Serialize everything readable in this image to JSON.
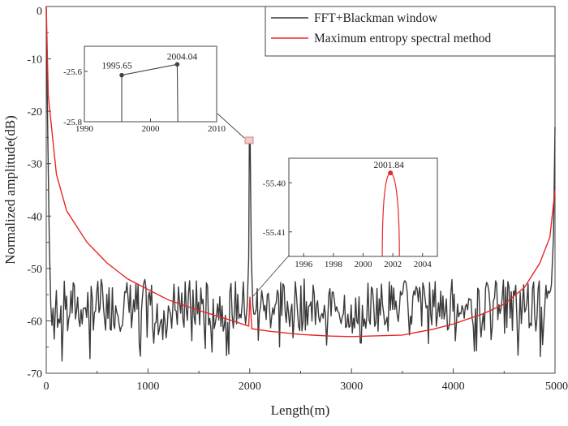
{
  "chart_data": {
    "type": "line",
    "xlabel": "Length(m)",
    "ylabel": "Normalized amplitude(dB)",
    "xlim": [
      0,
      5000
    ],
    "ylim": [
      -70,
      0
    ],
    "x_ticks": [
      "0",
      "1000",
      "2000",
      "3000",
      "4000",
      "5000"
    ],
    "y_ticks": [
      "0",
      "-10",
      "-20",
      "-30",
      "-40",
      "-50",
      "-60",
      "-70"
    ],
    "series": [
      {
        "name": "FFT+Blackman window",
        "color": "#3a3a3a",
        "style": "noisy floor around -57 dB with a single peak near 2004 m",
        "key_points": [
          {
            "x": 0,
            "y": 0
          },
          {
            "x": 1995.65,
            "y": -25.6
          },
          {
            "x": 2004.04,
            "y": -25.57
          },
          {
            "x": 5000,
            "y": -23
          }
        ]
      },
      {
        "name": "Maximum entropy spectral method",
        "color": "#e8262a",
        "style": "smooth U-shaped curve with a small peak near 2002 m",
        "points": [
          [
            0,
            0
          ],
          [
            20,
            -17
          ],
          [
            100,
            -32
          ],
          [
            200,
            -39
          ],
          [
            400,
            -45
          ],
          [
            600,
            -49
          ],
          [
            800,
            -52
          ],
          [
            1000,
            -54
          ],
          [
            1200,
            -56
          ],
          [
            1500,
            -58
          ],
          [
            1800,
            -59.8
          ],
          [
            1990,
            -61
          ],
          [
            2001.84,
            -55.4
          ],
          [
            2020,
            -61.5
          ],
          [
            2200,
            -62
          ],
          [
            2500,
            -62.6
          ],
          [
            2800,
            -62.9
          ],
          [
            3000,
            -63
          ],
          [
            3500,
            -62.7
          ],
          [
            3800,
            -61.6
          ],
          [
            4000,
            -60.6
          ],
          [
            4300,
            -58.6
          ],
          [
            4500,
            -56.8
          ],
          [
            4700,
            -53.6
          ],
          [
            4850,
            -49
          ],
          [
            4950,
            -44
          ],
          [
            5000,
            -35
          ]
        ]
      }
    ],
    "legend": {
      "position": "top-right"
    },
    "insets": [
      {
        "series": "FFT+Blackman window",
        "xlim": [
          1990,
          2010
        ],
        "ylim": [
          -25.8,
          -25.5
        ],
        "x_ticks": [
          "1990",
          "2000",
          "2010"
        ],
        "y_ticks": [
          "-25.6",
          "-25.8"
        ],
        "points": [
          [
            1995.65,
            -25.615
          ],
          [
            2004.04,
            -25.572
          ]
        ],
        "labels": [
          "1995.65",
          "2004.04"
        ]
      },
      {
        "series": "Maximum entropy spectral method",
        "xlim": [
          1995,
          2005
        ],
        "ylim": [
          -55.415,
          -55.395
        ],
        "x_ticks": [
          "1996",
          "1998",
          "2000",
          "2002",
          "2004"
        ],
        "y_ticks": [
          "-55.40",
          "-55.41"
        ],
        "peak": [
          2001.84,
          -55.398
        ],
        "label": "2001.84"
      }
    ]
  },
  "colors": {
    "black_series": "#3a3a3a",
    "red_series": "#e8262a",
    "axis": "#444444"
  }
}
